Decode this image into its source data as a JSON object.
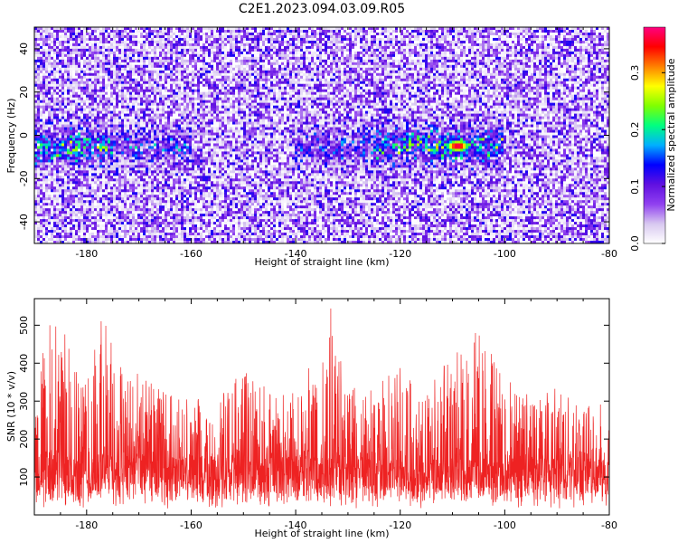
{
  "title": "C2E1.2023.094.03.09.R05",
  "chart_data": [
    {
      "type": "heatmap",
      "xlabel": "Height of straight line (km)",
      "ylabel": "Frequency (Hz)",
      "xlim": [
        -190,
        -80
      ],
      "ylim": [
        -50,
        50
      ],
      "x_ticks": [
        -180,
        -160,
        -140,
        -120,
        -100,
        -80
      ],
      "y_ticks": [
        -40,
        -20,
        0,
        20,
        40
      ],
      "colorbar": {
        "label": "Normalized spectral amplitude",
        "range": [
          0,
          0.38
        ],
        "ticks": [
          0.0,
          0.1,
          0.2,
          0.3
        ],
        "colors": [
          "#ffffff",
          "#d8c8f0",
          "#9040f0",
          "#6010e0",
          "#0000ff",
          "#00b0ff",
          "#00ff80",
          "#80ff00",
          "#ffff00",
          "#ff8000",
          "#ff0000",
          "#ff0080"
        ]
      },
      "signal_band": {
        "frequency_center": -5,
        "peak_amplitude": 0.38,
        "peak_height": -109
      }
    },
    {
      "type": "line",
      "xlabel": "Height of straight line (km)",
      "ylabel": "SNR (10 * v/v)",
      "xlim": [
        -190,
        -80
      ],
      "ylim": [
        0,
        570
      ],
      "x_ticks": [
        -180,
        -160,
        -140,
        -120,
        -100,
        -80
      ],
      "y_ticks": [
        100,
        200,
        300,
        400,
        500
      ],
      "series": [
        {
          "color": "#ee2222",
          "x": [
            -190,
            -187,
            -183,
            -180,
            -177,
            -173,
            -170,
            -165,
            -160,
            -155,
            -150,
            -145,
            -140,
            -135,
            -133,
            -130,
            -125,
            -120,
            -115,
            -110,
            -107,
            -105,
            -102,
            -100,
            -95,
            -90,
            -85,
            -80
          ],
          "values": [
            330,
            510,
            480,
            380,
            530,
            400,
            370,
            330,
            300,
            320,
            380,
            330,
            350,
            430,
            570,
            330,
            360,
            400,
            340,
            420,
            490,
            520,
            420,
            360,
            330,
            340,
            300,
            290
          ]
        }
      ]
    }
  ]
}
